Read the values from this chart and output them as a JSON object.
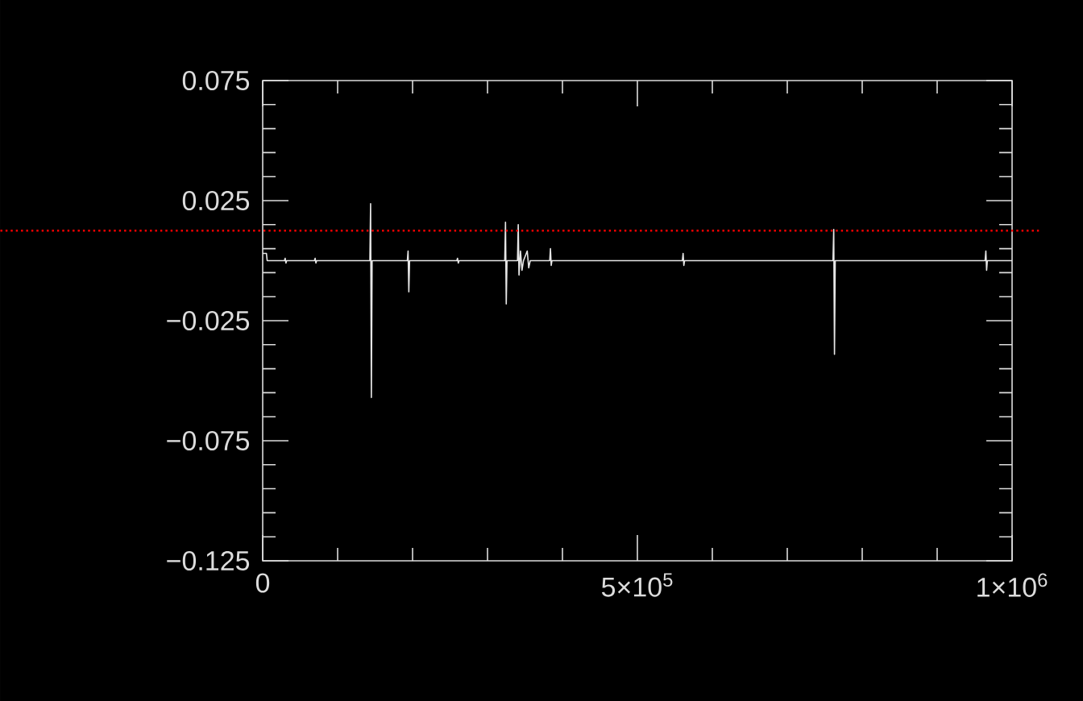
{
  "chart_data": {
    "type": "line",
    "x": [
      0,
      5000,
      6000,
      29000,
      30000,
      31000,
      32000,
      69000,
      70000,
      71000,
      72000,
      143000,
      144000,
      145000,
      146000,
      193000,
      194000,
      195000,
      196000,
      259000,
      260000,
      261000,
      262000,
      323000,
      324000,
      325000,
      326000,
      340000,
      341000,
      342000,
      344000,
      346000,
      348000,
      353000,
      355000,
      357000,
      383000,
      384000,
      385000,
      386000,
      560000,
      561000,
      562000,
      563000,
      761000,
      762000,
      763000,
      764000,
      964000,
      965000,
      966000,
      967000,
      1000000
    ],
    "series": [
      {
        "color": "#e6e6e6",
        "values": [
          0.003,
          0.003,
          0,
          0,
          0.001,
          -0.001,
          0,
          0,
          0.001,
          -0.001,
          0,
          0,
          0.0237,
          -0.057,
          0,
          0,
          0.004,
          -0.013,
          0,
          0,
          0.001,
          -0.001,
          0,
          0,
          0.016,
          -0.018,
          0,
          0,
          0.015,
          -0.006,
          0.004,
          -0.004,
          0,
          0.004,
          -0.003,
          0,
          0,
          0.005,
          -0.002,
          0,
          0,
          0.003,
          -0.002,
          0,
          0,
          0.013,
          -0.039,
          0,
          0,
          0.004,
          -0.004,
          0,
          0
        ]
      }
    ],
    "xlim": [
      0,
      1000000
    ],
    "xticks": [
      0,
      {
        "value": 500000,
        "label": "5×10$^{5}$"
      },
      {
        "value": 1000000,
        "label": "1×10$^{6}$"
      }
    ],
    "ylim": [
      -0.125,
      0.075
    ],
    "yticks": [
      {
        "value": -0.125,
        "label": "−0.125"
      },
      {
        "value": -0.075,
        "label": "−0.075"
      },
      {
        "value": -0.025,
        "label": "−0.025"
      },
      0.025,
      0.075
    ],
    "ref_lines": [
      {
        "axis": "y",
        "value": 0.0125,
        "color": "#ff0000",
        "line_style": "dotted"
      }
    ],
    "line_style": "solid",
    "marker": "none",
    "grid": false
  }
}
